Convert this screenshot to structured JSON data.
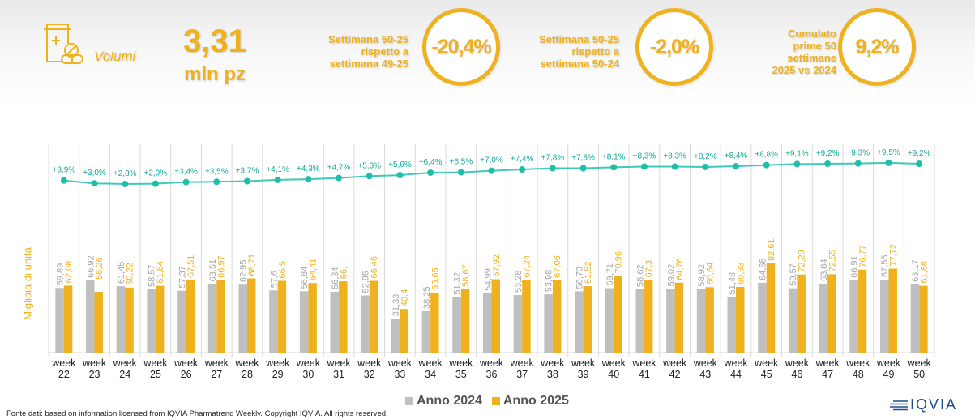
{
  "header": {
    "category_icon": "pill-bottle-icon",
    "category_label": "Volumi",
    "kpi_value": "3,31",
    "kpi_unit": "mln pz",
    "comparisons": [
      {
        "caption": [
          "Settimana 50-25",
          "rispetto a",
          "settimana 49-25"
        ],
        "value": "-20,4%"
      },
      {
        "caption": [
          "Settimana 50-25",
          "rispetto a",
          "settimana 50-24"
        ],
        "value": "-2,0%"
      },
      {
        "caption": [
          "Cumulato",
          "prime 50",
          "settimane",
          "2025 vs 2024"
        ],
        "value": "9,2%"
      }
    ]
  },
  "colors": {
    "accent": "#efb21e",
    "series_2024": "#bfbfbf",
    "series_2025": "#efb21e",
    "cumulative_line": "#1dbfaa",
    "grid": "#d9d9d9"
  },
  "chart_data": {
    "type": "bar",
    "title": "",
    "xlabel": "",
    "ylabel": "Migliaia di unità",
    "categories": [
      [
        "week",
        "22"
      ],
      [
        "week",
        "23"
      ],
      [
        "week",
        "24"
      ],
      [
        "week",
        "25"
      ],
      [
        "week",
        "26"
      ],
      [
        "week",
        "27"
      ],
      [
        "week",
        "28"
      ],
      [
        "week",
        "29"
      ],
      [
        "week",
        "30"
      ],
      [
        "week",
        "31"
      ],
      [
        "week",
        "32"
      ],
      [
        "week",
        "33"
      ],
      [
        "week",
        "34"
      ],
      [
        "week",
        "35"
      ],
      [
        "week",
        "36"
      ],
      [
        "week",
        "37"
      ],
      [
        "week",
        "38"
      ],
      [
        "week",
        "39"
      ],
      [
        "week",
        "40"
      ],
      [
        "week",
        "41"
      ],
      [
        "week",
        "42"
      ],
      [
        "week",
        "43"
      ],
      [
        "week",
        "44"
      ],
      [
        "week",
        "45"
      ],
      [
        "week",
        "46"
      ],
      [
        "week",
        "47"
      ],
      [
        "week",
        "48"
      ],
      [
        "week",
        "49"
      ],
      [
        "week",
        "50"
      ]
    ],
    "series": [
      {
        "name": "Anno 2024",
        "values": [
          59.89,
          66.92,
          61.45,
          58.57,
          57.37,
          63.51,
          62.95,
          57.6,
          56.84,
          56.34,
          52.95,
          31.33,
          38.25,
          51.32,
          54.99,
          53.28,
          53.98,
          56.73,
          59.71,
          58.62,
          59.02,
          58.92,
          51.48,
          64.68,
          59.57,
          63.84,
          66.91,
          67.55,
          63.17
        ],
        "labels": [
          "59,89",
          "66,92",
          "61,45",
          "58,57",
          "57,37",
          "63,51",
          "62,95",
          "57,6",
          "56,84",
          "56,34",
          "52,95",
          "31,33",
          "38,25",
          "51,32",
          "54,99",
          "53,28",
          "53,98",
          "56,73",
          "59,71",
          "58,62",
          "59,02",
          "58,92",
          "51,48",
          "64,68",
          "59,57",
          "63,84",
          "66,91",
          "67,55",
          "63,17"
        ]
      },
      {
        "name": "Anno 2025",
        "values": [
          62.08,
          56.26,
          60.22,
          61.84,
          67.51,
          66.97,
          68.71,
          66.5,
          64.41,
          66.0,
          66.46,
          40.4,
          55.65,
          58.67,
          67.92,
          67.24,
          67.06,
          61.52,
          70.96,
          67.3,
          64.76,
          60.64,
          60.83,
          82.61,
          72.29,
          72.55,
          76.77,
          77.72,
          61.88
        ],
        "labels": [
          "62,08",
          "56,26",
          "60,22",
          "61,84",
          "67,51",
          "66,97",
          "68,71",
          "66,5",
          "64,41",
          "66,",
          "66,46",
          "40,4",
          "55,65",
          "58,67",
          "67,92",
          "67,24",
          "67,06",
          "61,52",
          "70,96",
          "67,3",
          "64,76",
          "60,64",
          "60,83",
          "82,61",
          "72,29",
          "72,55",
          "76,77",
          "77,72",
          "61,88"
        ]
      },
      {
        "name": "Cumulato 2025 vs 2024",
        "type": "line",
        "values": [
          3.9,
          3.0,
          2.8,
          2.9,
          3.4,
          3.5,
          3.7,
          4.1,
          4.3,
          4.7,
          5.3,
          5.6,
          6.4,
          6.5,
          7.0,
          7.4,
          7.8,
          7.8,
          8.1,
          8.3,
          8.3,
          8.2,
          8.4,
          8.8,
          9.1,
          9.2,
          9.3,
          9.5,
          9.2
        ],
        "labels": [
          "+3,9%",
          "+3,0%",
          "+2,8%",
          "+2,9%",
          "+3,4%",
          "+3,5%",
          "+3,7%",
          "+4,1%",
          "+4,3%",
          "+4,7%",
          "+5,3%",
          "+5,6%",
          "+6,4%",
          "+6,5%",
          "+7,0%",
          "+7,4%",
          "+7,8%",
          "+7,8%",
          "+8,1%",
          "+8,3%",
          "+8,3%",
          "+8,2%",
          "+8,4%",
          "+8,8%",
          "+9,1%",
          "+9,2%",
          "+9,3%",
          "+9,5%",
          "+9,2%"
        ]
      }
    ],
    "ylim": [
      0,
      90
    ],
    "grid": "vertical",
    "legend": {
      "position": "bottom",
      "entries": [
        "Anno 2024",
        "Anno 2025"
      ]
    }
  },
  "footer": {
    "source": "Fonte dati: based on information licensed from IQVIA Pharmatrend Weekly. Copyright IQVIA. All rights reserved.",
    "logo_text": "IQVIA"
  }
}
